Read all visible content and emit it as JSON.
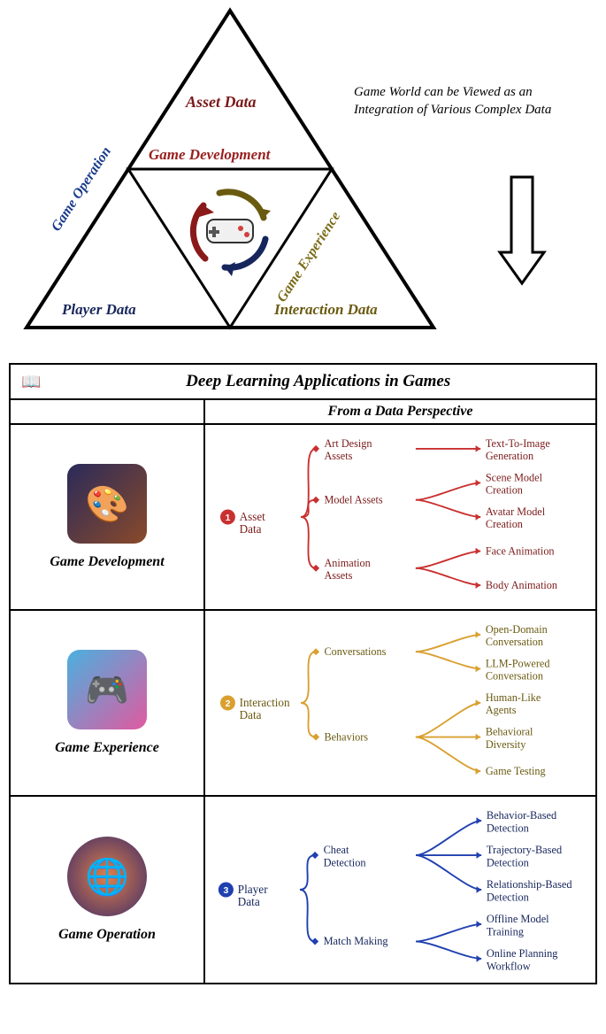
{
  "triangle": {
    "top_label": "Asset Data",
    "top_sub": "Game Development",
    "left_label": "Player Data",
    "left_sub": "Game Operation",
    "right_label": "Interaction Data",
    "right_sub": "Game Experience",
    "caption": "Game World can be Viewed as an Integration of Various Complex Data",
    "colors": {
      "asset": "#7a1a1a",
      "dev": "#9a2020",
      "player": "#16265c",
      "operation": "#1a3a8a",
      "interaction": "#6a5a10",
      "experience": "#7a6a18",
      "arrow_red": "#8a1a1a",
      "arrow_olive": "#6a5a10",
      "arrow_navy": "#16265c",
      "line": "#000000"
    }
  },
  "table": {
    "title": "Deep Learning Applications in Games",
    "subtitle": "From a Data Perspective",
    "rows": [
      {
        "category": "Game Development",
        "num": "1",
        "root": "Asset Data",
        "color": "#c93030",
        "text_color": "#7a1a1a",
        "thumb_bg": "linear-gradient(135deg,#2a2a5a,#8a4a2a)",
        "branches": [
          {
            "label": "Art Design Assets",
            "leaves": [
              "Text-To-Image Generation"
            ]
          },
          {
            "label": "Model Assets",
            "leaves": [
              "Scene Model Creation",
              "Avatar Model Creation"
            ]
          },
          {
            "label": "Animation Assets",
            "leaves": [
              "Face Animation",
              "Body Animation"
            ]
          }
        ]
      },
      {
        "category": "Game Experience",
        "num": "2",
        "root": "Interaction Data",
        "color": "#d9a030",
        "text_color": "#6a5a10",
        "thumb_bg": "linear-gradient(135deg,#4ab0e0,#e05aa0)",
        "branches": [
          {
            "label": "Conversations",
            "leaves": [
              "Open-Domain Conversation",
              "LLM-Powered Conversation"
            ]
          },
          {
            "label": "Behaviors",
            "leaves": [
              "Human-Like Agents",
              "Behavioral Diversity",
              "Game Testing"
            ]
          }
        ]
      },
      {
        "category": "Game Operation",
        "num": "3",
        "root": "Player Data",
        "color": "#2040b0",
        "text_color": "#16265c",
        "thumb_bg": "radial-gradient(circle,#e0804a,#3a2a6a)",
        "branches": [
          {
            "label": "Cheat Detection",
            "leaves": [
              "Behavior-Based Detection",
              "Trajectory-Based Detection",
              "Relationship-Based Detection"
            ]
          },
          {
            "label": "Match Making",
            "leaves": [
              "Offline Model Training",
              "Online Planning Workflow"
            ]
          }
        ]
      }
    ]
  }
}
